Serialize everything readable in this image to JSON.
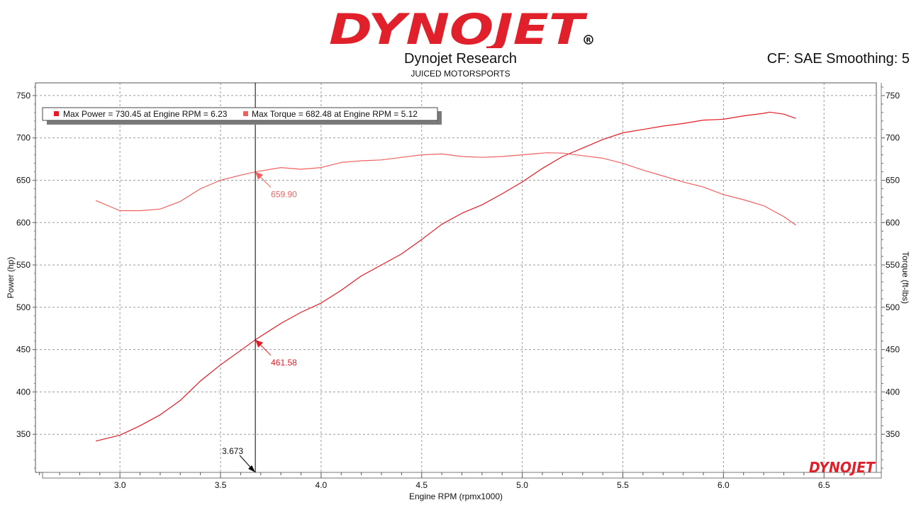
{
  "header": {
    "logo_text": "DYNOJET",
    "title": "Dynojet Research",
    "subtitle": "JUICED MOTORSPORTS",
    "cf_text": "CF: SAE Smoothing: 5"
  },
  "watermark": {
    "text": "DYNOJET"
  },
  "colors": {
    "power": "#e31b23",
    "torque": "#f06060",
    "logo_red": "#e0202a",
    "logo_black": "#111111",
    "grid": "#9a9a9a"
  },
  "chart_data": {
    "type": "line",
    "xlabel": "Engine RPM (rpmx1000)",
    "ylabel_left": "Power (hp)",
    "ylabel_right": "Torque (ft-lbs)",
    "xlim": [
      2.58,
      6.76
    ],
    "ylim": [
      305,
      765
    ],
    "xticks": [
      3.0,
      3.5,
      4.0,
      4.5,
      5.0,
      5.5,
      6.0,
      6.5
    ],
    "xtick_labels": [
      "3.0",
      "3.5",
      "4.0",
      "4.5",
      "5.0",
      "5.5",
      "6.0",
      "6.5"
    ],
    "yticks": [
      350,
      400,
      450,
      500,
      550,
      600,
      650,
      700,
      750
    ],
    "ytick_labels": [
      "350",
      "400",
      "450",
      "500",
      "550",
      "600",
      "650",
      "700",
      "750"
    ],
    "grid": true,
    "legend": {
      "position": "top-left",
      "entries": [
        "Max Power = 730.45 at Engine RPM = 6.23",
        "Max Torque = 682.48 at Engine RPM = 5.12"
      ]
    },
    "cursor": {
      "x": 3.673,
      "label": "3.673"
    },
    "series": [
      {
        "name": "Power",
        "axis": "left",
        "x": [
          2.88,
          3.0,
          3.1,
          3.2,
          3.3,
          3.4,
          3.5,
          3.6,
          3.673,
          3.8,
          3.9,
          4.0,
          4.1,
          4.2,
          4.3,
          4.4,
          4.5,
          4.6,
          4.7,
          4.8,
          4.9,
          5.0,
          5.1,
          5.2,
          5.3,
          5.4,
          5.5,
          5.6,
          5.7,
          5.8,
          5.9,
          6.0,
          6.1,
          6.2,
          6.23,
          6.3,
          6.36
        ],
        "values": [
          342,
          349,
          360,
          373,
          390,
          413,
          432,
          449,
          461.58,
          481,
          494,
          505,
          520,
          537,
          550,
          563,
          580,
          598,
          611,
          621,
          634,
          648,
          664,
          678,
          688,
          698,
          706,
          710,
          714,
          717,
          721,
          722,
          726,
          729,
          730.45,
          728,
          723
        ]
      },
      {
        "name": "Torque",
        "axis": "right",
        "x": [
          2.88,
          3.0,
          3.1,
          3.2,
          3.3,
          3.4,
          3.5,
          3.6,
          3.673,
          3.8,
          3.9,
          4.0,
          4.1,
          4.2,
          4.3,
          4.4,
          4.5,
          4.6,
          4.7,
          4.8,
          4.9,
          5.0,
          5.12,
          5.2,
          5.3,
          5.4,
          5.5,
          5.6,
          5.7,
          5.8,
          5.9,
          6.0,
          6.1,
          6.2,
          6.3,
          6.36
        ],
        "values": [
          626,
          614,
          614,
          616,
          625,
          640,
          650,
          656,
          659.9,
          665,
          663,
          665,
          671,
          673,
          674,
          677,
          680,
          681,
          678,
          677,
          678,
          680,
          682.48,
          682,
          679,
          676,
          670,
          662,
          655,
          648,
          642,
          633,
          627,
          620,
          607,
          597
        ]
      }
    ],
    "annotations": [
      {
        "series": "Power",
        "x": 3.673,
        "value": 461.58,
        "label": "461.58"
      },
      {
        "series": "Torque",
        "x": 3.673,
        "value": 659.9,
        "label": "659.90"
      }
    ]
  }
}
